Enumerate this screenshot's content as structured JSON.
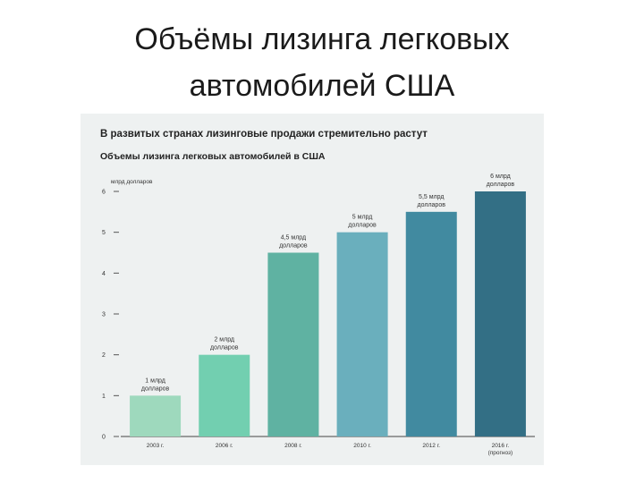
{
  "slide": {
    "title_line1": "Объёмы лизинга легковых",
    "title_line2": "автомобилей США"
  },
  "chart_data": {
    "type": "bar",
    "headline": "В развитых странах лизинговые продажи стремительно растут",
    "title": "Объемы лизинга легковых автомобилей в США",
    "ylabel": "млрд долларов",
    "xlabel": "",
    "ylim": [
      0,
      6
    ],
    "yticks": [
      0,
      1,
      2,
      3,
      4,
      5,
      6
    ],
    "grid": false,
    "legend": "none",
    "categories": [
      [
        "2003 г."
      ],
      [
        "2006 г."
      ],
      [
        "2008 г."
      ],
      [
        "2010 г."
      ],
      [
        "2012 г."
      ],
      [
        "2016 г.",
        "(прогноз)"
      ]
    ],
    "values": [
      1,
      2,
      4.5,
      5,
      5.5,
      6
    ],
    "value_labels": [
      [
        "1 млрд",
        "долларов"
      ],
      [
        "2 млрд",
        "долларов"
      ],
      [
        "4,5 млрд",
        "долларов"
      ],
      [
        "5 млрд",
        "долларов"
      ],
      [
        "5,5 млрд",
        "долларов"
      ],
      [
        "6 млрд",
        "долларов"
      ]
    ],
    "colors": [
      "#9ed9bd",
      "#72cfb0",
      "#5fb2a2",
      "#6aafbd",
      "#418aa0",
      "#336f85"
    ]
  }
}
